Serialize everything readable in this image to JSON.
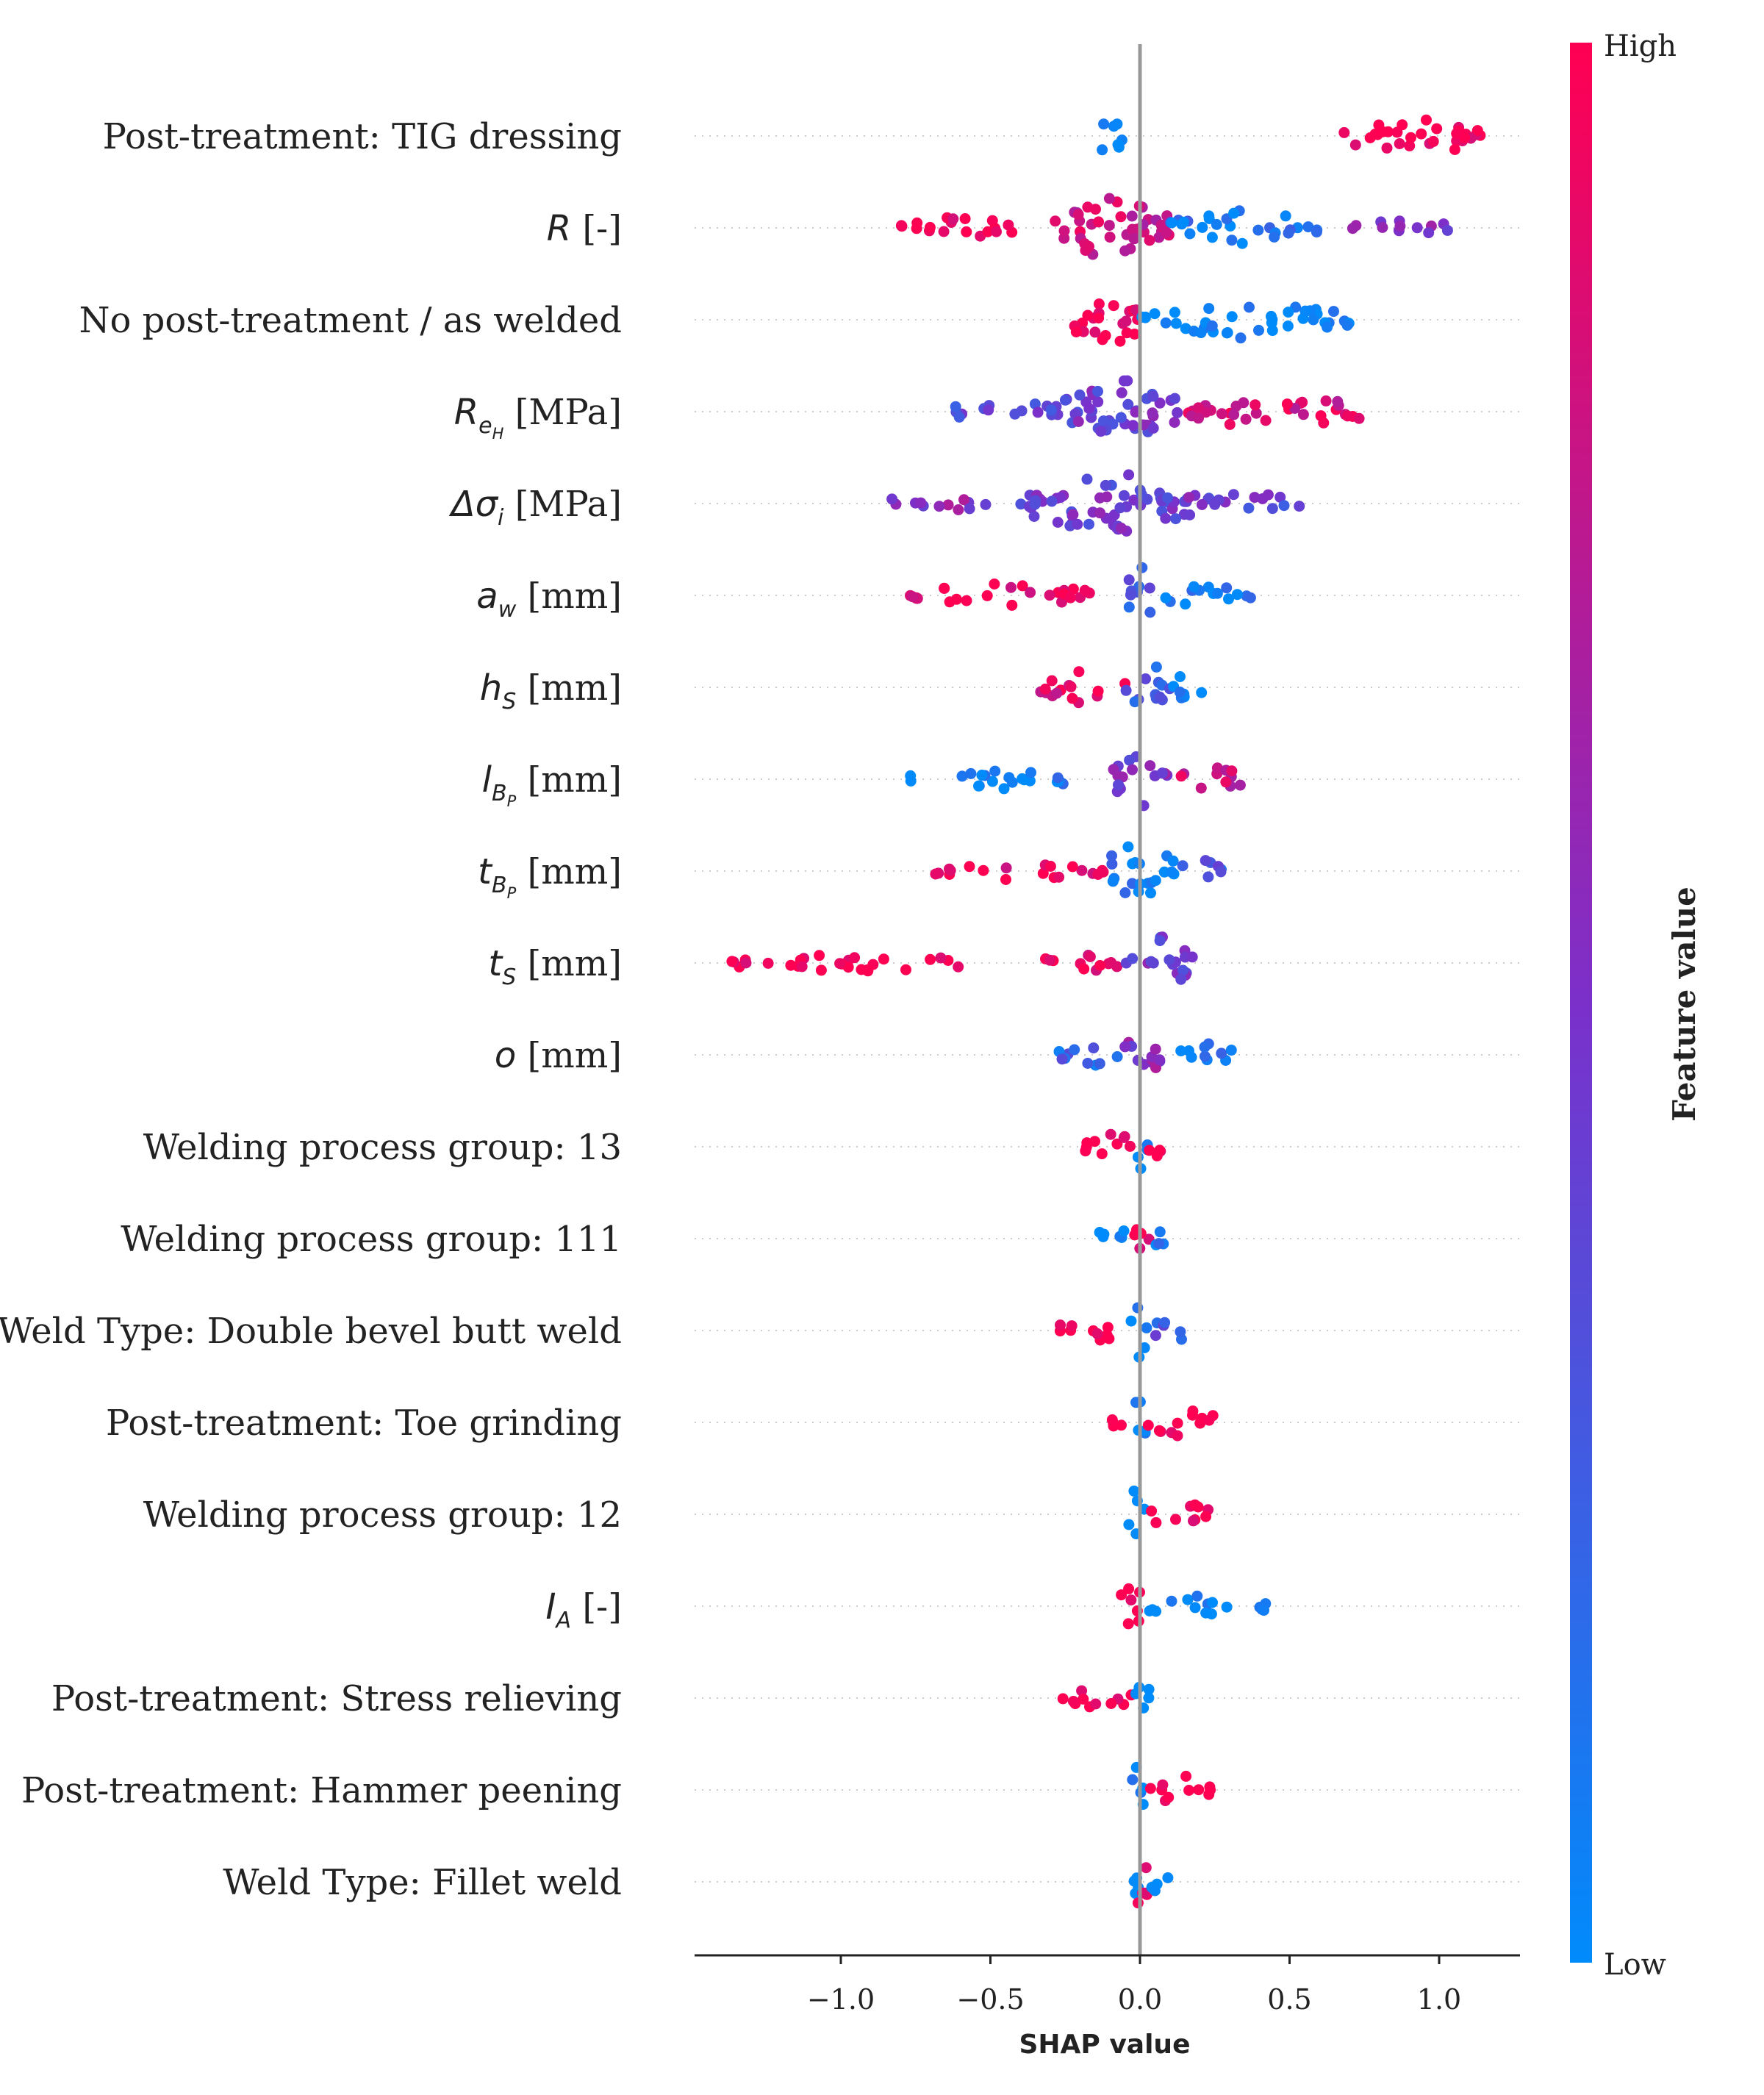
{
  "chart_data": {
    "type": "scatter",
    "subtype": "shap-beeswarm-summary",
    "xlabel": "SHAP value",
    "xlim": [
      -1.48,
      1.28
    ],
    "xticks": [
      -1.0,
      -0.5,
      0.0,
      0.5,
      1.0
    ],
    "xtick_labels": [
      "−1.0",
      "−0.5",
      "0.0",
      "0.5",
      "1.0"
    ],
    "grid": false,
    "colorbar": {
      "title": "Feature value",
      "high_label": "High",
      "low_label": "Low",
      "low_color": "#008bfb",
      "mid_color": "#7b30ca",
      "high_color": "#ff0052"
    },
    "features": [
      {
        "name": "Post-treatment: TIG dressing",
        "clusters": [
          {
            "range": [
              -0.14,
              -0.06
            ],
            "value": 0.0,
            "density": 9
          },
          {
            "range": [
              0.68,
              1.15
            ],
            "value": 1.0,
            "density": 6
          }
        ]
      },
      {
        "name_math": "R",
        "unit": "[-]",
        "clusters": [
          {
            "range": [
              -0.8,
              -0.35
            ],
            "value": 0.95,
            "density": 3
          },
          {
            "range": [
              -0.3,
              0.1
            ],
            "value": 0.8,
            "density": 12
          },
          {
            "range": [
              0.1,
              0.6
            ],
            "value": 0.1,
            "density": 5
          },
          {
            "range": [
              0.7,
              1.05
            ],
            "value": 0.5,
            "density": 2
          }
        ]
      },
      {
        "name": "No post-treatment / as welded",
        "clusters": [
          {
            "range": [
              -0.22,
              0.0
            ],
            "value": 1.0,
            "density": 10
          },
          {
            "range": [
              0.0,
              0.7
            ],
            "value": 0.0,
            "density": 5
          }
        ]
      },
      {
        "name_math": "R",
        "sub": "e",
        "subsub": "H",
        "unit": "[MPa]",
        "clusters": [
          {
            "range": [
              -0.65,
              -0.25
            ],
            "value": 0.35,
            "density": 3
          },
          {
            "range": [
              -0.25,
              0.15
            ],
            "value": 0.45,
            "density": 12
          },
          {
            "range": [
              0.15,
              0.75
            ],
            "value": 0.85,
            "density": 5
          }
        ]
      },
      {
        "name_math": "Δσ",
        "sub": "i",
        "unit": "[MPa]",
        "clusters": [
          {
            "range": [
              -0.87,
              -0.5
            ],
            "value": 0.55,
            "density": 2
          },
          {
            "range": [
              -0.4,
              0.2
            ],
            "value": 0.45,
            "density": 11
          },
          {
            "range": [
              0.2,
              0.55
            ],
            "value": 0.4,
            "density": 3
          }
        ]
      },
      {
        "name_math": "a",
        "sub": "w",
        "unit": "[mm]",
        "clusters": [
          {
            "range": [
              -0.77,
              -0.15
            ],
            "value": 0.95,
            "density": 3
          },
          {
            "range": [
              -0.05,
              0.05
            ],
            "value": 0.3,
            "density": 9
          },
          {
            "range": [
              0.05,
              0.38
            ],
            "value": 0.05,
            "density": 3
          }
        ]
      },
      {
        "name_math": "h",
        "sub": "S",
        "unit": "[mm]",
        "clusters": [
          {
            "range": [
              -0.35,
              -0.05
            ],
            "value": 0.9,
            "density": 4
          },
          {
            "range": [
              -0.05,
              0.1
            ],
            "value": 0.25,
            "density": 8
          },
          {
            "range": [
              0.1,
              0.23
            ],
            "value": 0.05,
            "density": 4
          }
        ]
      },
      {
        "name_math": "l",
        "sub": "B",
        "subsub": "P",
        "unit": "[mm]",
        "clusters": [
          {
            "range": [
              -0.77,
              -0.15
            ],
            "value": 0.05,
            "density": 2
          },
          {
            "range": [
              -0.1,
              0.1
            ],
            "value": 0.5,
            "density": 9
          },
          {
            "range": [
              0.1,
              0.37
            ],
            "value": 0.8,
            "density": 3
          }
        ]
      },
      {
        "name_math": "t",
        "sub": "B",
        "subsub": "P",
        "unit": "[mm]",
        "clusters": [
          {
            "range": [
              -0.71,
              -0.12
            ],
            "value": 0.95,
            "density": 2
          },
          {
            "range": [
              -0.12,
              0.12
            ],
            "value": 0.1,
            "density": 9
          },
          {
            "range": [
              0.12,
              0.28
            ],
            "value": 0.3,
            "density": 3
          }
        ]
      },
      {
        "name_math": "t",
        "sub": "S",
        "unit": "[mm]",
        "clusters": [
          {
            "range": [
              -1.38,
              -0.55
            ],
            "value": 1.0,
            "density": 2
          },
          {
            "range": [
              -0.33,
              -0.05
            ],
            "value": 0.9,
            "density": 3
          },
          {
            "range": [
              -0.05,
              0.18
            ],
            "value": 0.45,
            "density": 8
          }
        ]
      },
      {
        "name_math": "o",
        "unit": "[mm]",
        "clusters": [
          {
            "range": [
              -0.28,
              -0.05
            ],
            "value": 0.2,
            "density": 3
          },
          {
            "range": [
              -0.05,
              0.08
            ],
            "value": 0.55,
            "density": 9
          },
          {
            "range": [
              0.08,
              0.33
            ],
            "value": 0.15,
            "density": 3
          }
        ]
      },
      {
        "name": "Welding process group: 13",
        "clusters": [
          {
            "range": [
              -0.2,
              0.0
            ],
            "value": 1.0,
            "density": 4
          },
          {
            "range": [
              -0.01,
              0.03
            ],
            "value": 0.0,
            "density": 9
          },
          {
            "range": [
              0.03,
              0.08
            ],
            "value": 1.0,
            "density": 2
          }
        ]
      },
      {
        "name": "Welding process group: 111",
        "clusters": [
          {
            "range": [
              -0.16,
              -0.02
            ],
            "value": 0.0,
            "density": 3
          },
          {
            "range": [
              -0.02,
              0.03
            ],
            "value": 1.0,
            "density": 9
          },
          {
            "range": [
              0.03,
              0.09
            ],
            "value": 0.05,
            "density": 2
          }
        ]
      },
      {
        "name": "Weld Type: Double bevel butt weld",
        "clusters": [
          {
            "range": [
              -0.28,
              -0.05
            ],
            "value": 1.0,
            "density": 3
          },
          {
            "range": [
              -0.03,
              0.03
            ],
            "value": 0.0,
            "density": 9
          },
          {
            "range": [
              0.03,
              0.18
            ],
            "value": 0.3,
            "density": 3
          }
        ]
      },
      {
        "name": "Post-treatment: Toe grinding",
        "clusters": [
          {
            "range": [
              -0.1,
              0.0
            ],
            "value": 1.0,
            "density": 2
          },
          {
            "range": [
              -0.03,
              0.02
            ],
            "value": 0.0,
            "density": 9
          },
          {
            "range": [
              0.02,
              0.26
            ],
            "value": 1.0,
            "density": 4
          }
        ]
      },
      {
        "name": "Welding process group: 12",
        "clusters": [
          {
            "range": [
              -0.04,
              0.02
            ],
            "value": 0.0,
            "density": 9
          },
          {
            "range": [
              0.02,
              0.23
            ],
            "value": 1.0,
            "density": 4
          }
        ]
      },
      {
        "name_math": "I",
        "sub": "A",
        "unit": "[-]",
        "clusters": [
          {
            "range": [
              -0.07,
              0.02
            ],
            "value": 1.0,
            "density": 8
          },
          {
            "range": [
              0.02,
              0.3
            ],
            "value": 0.0,
            "density": 3
          },
          {
            "range": [
              0.4,
              0.46
            ],
            "value": 0.0,
            "density": 1
          }
        ]
      },
      {
        "name": "Post-treatment: Stress relieving",
        "clusters": [
          {
            "range": [
              -0.28,
              -0.02
            ],
            "value": 1.0,
            "density": 3
          },
          {
            "range": [
              -0.02,
              0.03
            ],
            "value": 0.0,
            "density": 9
          }
        ]
      },
      {
        "name": "Post-treatment: Hammer peening",
        "clusters": [
          {
            "range": [
              -0.04,
              0.02
            ],
            "value": 0.0,
            "density": 9
          },
          {
            "range": [
              0.02,
              0.24
            ],
            "value": 1.0,
            "density": 4
          }
        ]
      },
      {
        "name": "Weld Type: Fillet weld",
        "clusters": [
          {
            "range": [
              -0.05,
              0.0
            ],
            "value": 0.0,
            "density": 4
          },
          {
            "range": [
              -0.02,
              0.03
            ],
            "value": 1.0,
            "density": 9
          },
          {
            "range": [
              0.03,
              0.1
            ],
            "value": 0.0,
            "density": 3
          }
        ]
      }
    ]
  }
}
